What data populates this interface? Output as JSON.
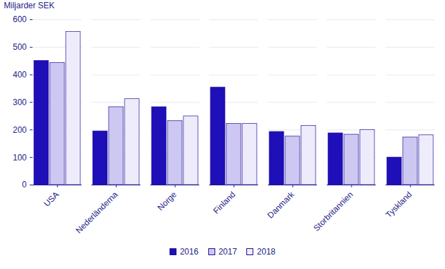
{
  "chart_data": {
    "type": "bar",
    "y_label": "Miljarder SEK",
    "categories": [
      "USA",
      "Nederländerna",
      "Norge",
      "Finland",
      "Danmark",
      "Storbritannien",
      "Tyskland"
    ],
    "series": [
      {
        "name": "2016",
        "color": "#1f0fb8",
        "values": [
          451,
          195,
          283,
          354,
          193,
          188,
          100
        ]
      },
      {
        "name": "2017",
        "color": "#cdc8f2",
        "values": [
          443,
          283,
          232,
          222,
          176,
          183,
          173
        ]
      },
      {
        "name": "2018",
        "color": "#eeecfb",
        "values": [
          556,
          312,
          249,
          222,
          215,
          200,
          181
        ]
      }
    ],
    "ylim": [
      0,
      600
    ],
    "yticks": [
      0,
      100,
      200,
      300,
      400,
      500,
      600
    ],
    "grid": true,
    "legend": "bottom"
  }
}
